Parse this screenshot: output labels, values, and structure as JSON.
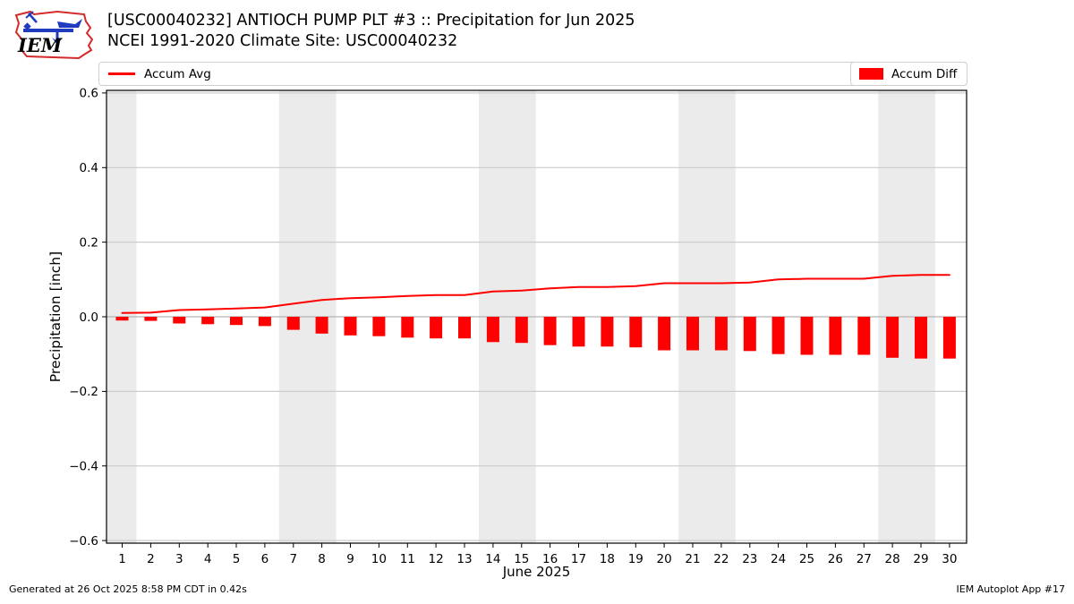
{
  "header": {
    "title_line1": "[USC00040232] ANTIOCH PUMP PLT #3 :: Precipitation for Jun 2025",
    "title_line2": "NCEI 1991-2020 Climate Site: USC00040232"
  },
  "logo": {
    "text": "IEM"
  },
  "legend": {
    "avg_label": "Accum Avg",
    "diff_label": "Accum Diff"
  },
  "footer": {
    "left": "Generated at 26 Oct 2025 8:58 PM CDT in 0.42s",
    "right": "IEM Autoplot App #17"
  },
  "chart_data": {
    "type": "line+bar",
    "title": "[USC00040232] ANTIOCH PUMP PLT #3 :: Precipitation for Jun 2025 — NCEI 1991-2020 Climate Site: USC00040232",
    "xlabel": "June 2025",
    "ylabel": "Precipitation [inch]",
    "x": [
      1,
      2,
      3,
      4,
      5,
      6,
      7,
      8,
      9,
      10,
      11,
      12,
      13,
      14,
      15,
      16,
      17,
      18,
      19,
      20,
      21,
      22,
      23,
      24,
      25,
      26,
      27,
      28,
      29,
      30
    ],
    "xtick_labels": [
      "1",
      "2",
      "3",
      "4",
      "5",
      "6",
      "7",
      "8",
      "9",
      "10",
      "11",
      "12",
      "13",
      "14",
      "15",
      "16",
      "17",
      "18",
      "19",
      "20",
      "21",
      "22",
      "23",
      "24",
      "25",
      "26",
      "27",
      "28",
      "29",
      "30"
    ],
    "series": [
      {
        "name": "Accum Avg",
        "type": "line",
        "color": "#ff0000",
        "values": [
          0.01,
          0.011,
          0.018,
          0.02,
          0.022,
          0.025,
          0.035,
          0.045,
          0.05,
          0.052,
          0.056,
          0.058,
          0.058,
          0.068,
          0.07,
          0.076,
          0.08,
          0.08,
          0.082,
          0.09,
          0.09,
          0.09,
          0.092,
          0.1,
          0.102,
          0.102,
          0.102,
          0.11,
          0.112,
          0.112
        ]
      },
      {
        "name": "Accum Diff",
        "type": "bar",
        "color": "#ff0000",
        "values": [
          -0.01,
          -0.011,
          -0.018,
          -0.02,
          -0.022,
          -0.025,
          -0.035,
          -0.045,
          -0.05,
          -0.052,
          -0.056,
          -0.058,
          -0.058,
          -0.068,
          -0.07,
          -0.076,
          -0.08,
          -0.08,
          -0.082,
          -0.09,
          -0.09,
          -0.09,
          -0.092,
          -0.1,
          -0.102,
          -0.102,
          -0.102,
          -0.11,
          -0.112,
          -0.112
        ]
      }
    ],
    "xlim": [
      0.45,
      30.6
    ],
    "ylim": [
      -0.607,
      0.607
    ],
    "yticks": [
      -0.6,
      -0.4,
      -0.2,
      0.0,
      0.2,
      0.4,
      0.6
    ],
    "ytick_labels": [
      "−0.6",
      "−0.4",
      "−0.2",
      "0.0",
      "0.2",
      "0.4",
      "0.6"
    ],
    "grid": "horizontal",
    "legend_position": "top, full-width row: Accum Avg left, Accum Diff right",
    "weekend_bands": [
      [
        0.45,
        1.5
      ],
      [
        6.5,
        8.5
      ],
      [
        13.5,
        15.5
      ],
      [
        20.5,
        22.5
      ],
      [
        27.5,
        29.5
      ]
    ],
    "colors": {
      "band": "#ebebeb",
      "grid": "#cccccc",
      "zero_line": "#b3b3b3",
      "frame": "#000000",
      "accent": "#ff0000"
    }
  }
}
